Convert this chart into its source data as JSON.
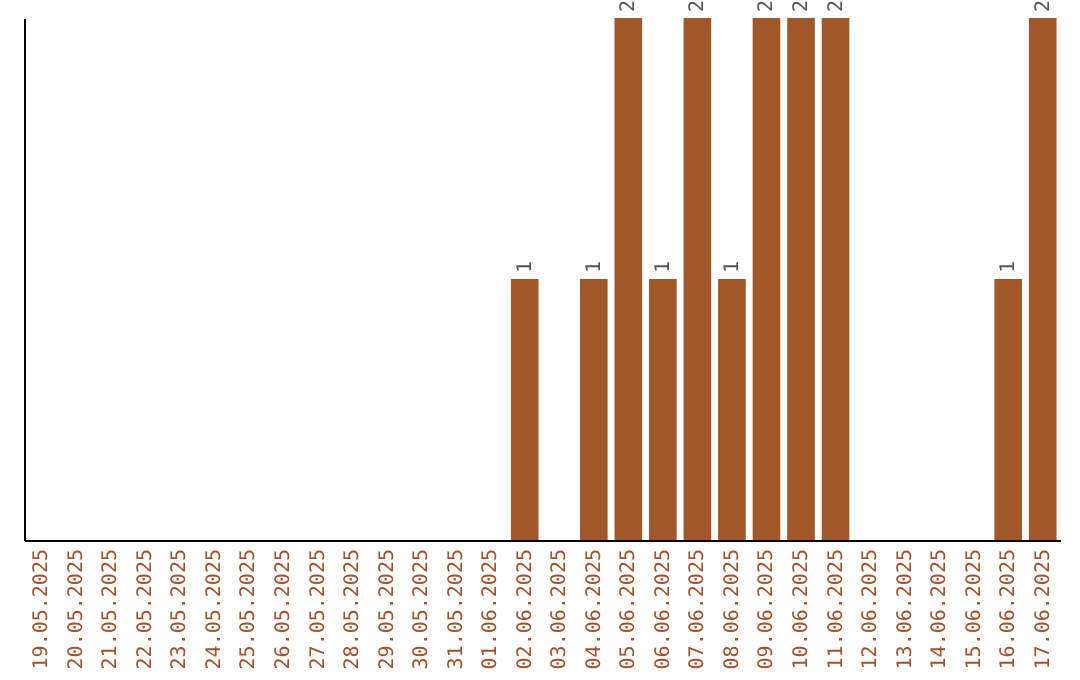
{
  "chart_data": {
    "type": "bar",
    "categories": [
      "19.05.2025",
      "20.05.2025",
      "21.05.2025",
      "22.05.2025",
      "23.05.2025",
      "24.05.2025",
      "25.05.2025",
      "26.05.2025",
      "27.05.2025",
      "28.05.2025",
      "29.05.2025",
      "30.05.2025",
      "31.05.2025",
      "01.06.2025",
      "02.06.2025",
      "03.06.2025",
      "04.06.2025",
      "05.06.2025",
      "06.06.2025",
      "07.06.2025",
      "08.06.2025",
      "09.06.2025",
      "10.06.2025",
      "11.06.2025",
      "12.06.2025",
      "13.06.2025",
      "14.06.2025",
      "15.06.2025",
      "16.06.2025",
      "17.06.2025"
    ],
    "values": [
      null,
      null,
      null,
      null,
      null,
      null,
      null,
      null,
      null,
      null,
      null,
      null,
      null,
      null,
      1,
      null,
      1,
      2,
      1,
      2,
      1,
      2,
      2,
      2,
      null,
      null,
      null,
      null,
      1,
      2
    ],
    "value_labels": [
      null,
      null,
      null,
      null,
      null,
      null,
      null,
      null,
      null,
      null,
      null,
      null,
      null,
      null,
      "1",
      null,
      "1",
      "2",
      "1",
      "2",
      "1",
      "2",
      "2",
      "2",
      null,
      null,
      null,
      null,
      "1",
      "2"
    ],
    "color": "#a0582a",
    "grid": false
  }
}
